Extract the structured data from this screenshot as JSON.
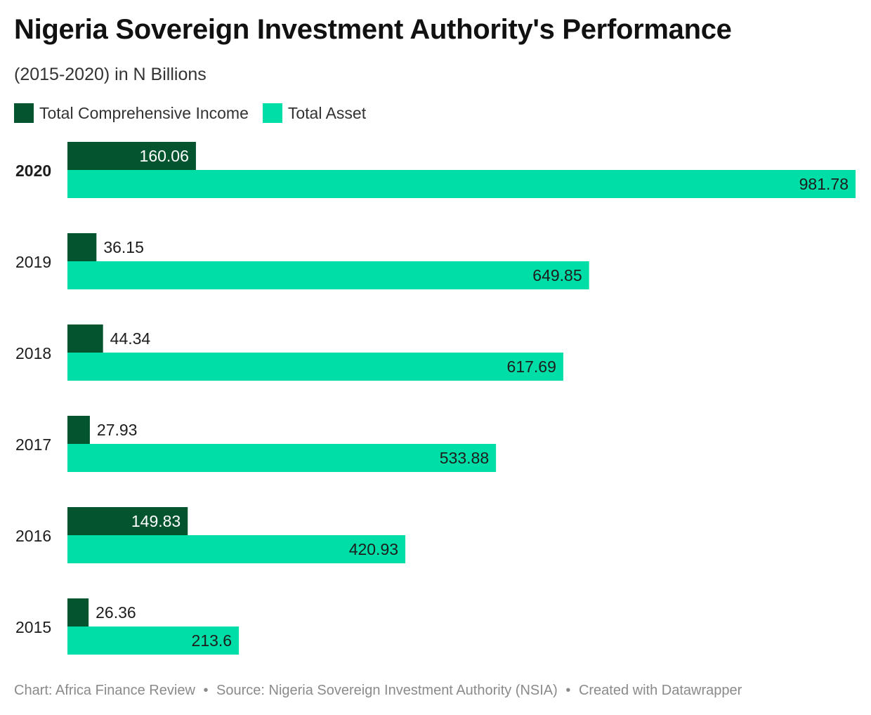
{
  "title": "Nigeria Sovereign Investment Authority's Performance",
  "subtitle": "(2015-2020) in N Billions",
  "legend": [
    {
      "label": "Total Comprehensive Income",
      "color": "#04542f"
    },
    {
      "label": "Total Asset",
      "color": "#00dea7"
    }
  ],
  "footer": {
    "chart_credit": "Chart: Africa Finance Review",
    "source": "Source: Nigeria Sovereign Investment Authority (NSIA)",
    "tool": "Created with Datawrapper",
    "separator": "•"
  },
  "chart_data": {
    "type": "bar",
    "orientation": "horizontal",
    "categories": [
      "2020",
      "2019",
      "2018",
      "2017",
      "2016",
      "2015"
    ],
    "highlighted_category": "2020",
    "series": [
      {
        "name": "Total Comprehensive Income",
        "color": "#04542f",
        "values": [
          160.06,
          36.15,
          44.34,
          27.93,
          149.83,
          26.36
        ],
        "labels": [
          "160.06",
          "36.15",
          "44.34",
          "27.93",
          "149.83",
          "26.36"
        ]
      },
      {
        "name": "Total Asset",
        "color": "#00dea7",
        "values": [
          981.78,
          649.85,
          617.69,
          533.88,
          420.93,
          213.6
        ],
        "labels": [
          "981.78",
          "649.85",
          "617.69",
          "533.88",
          "420.93",
          "213.6"
        ]
      }
    ],
    "xlim": [
      0,
      981.78
    ],
    "grid": false,
    "legend_position": "top-left"
  }
}
